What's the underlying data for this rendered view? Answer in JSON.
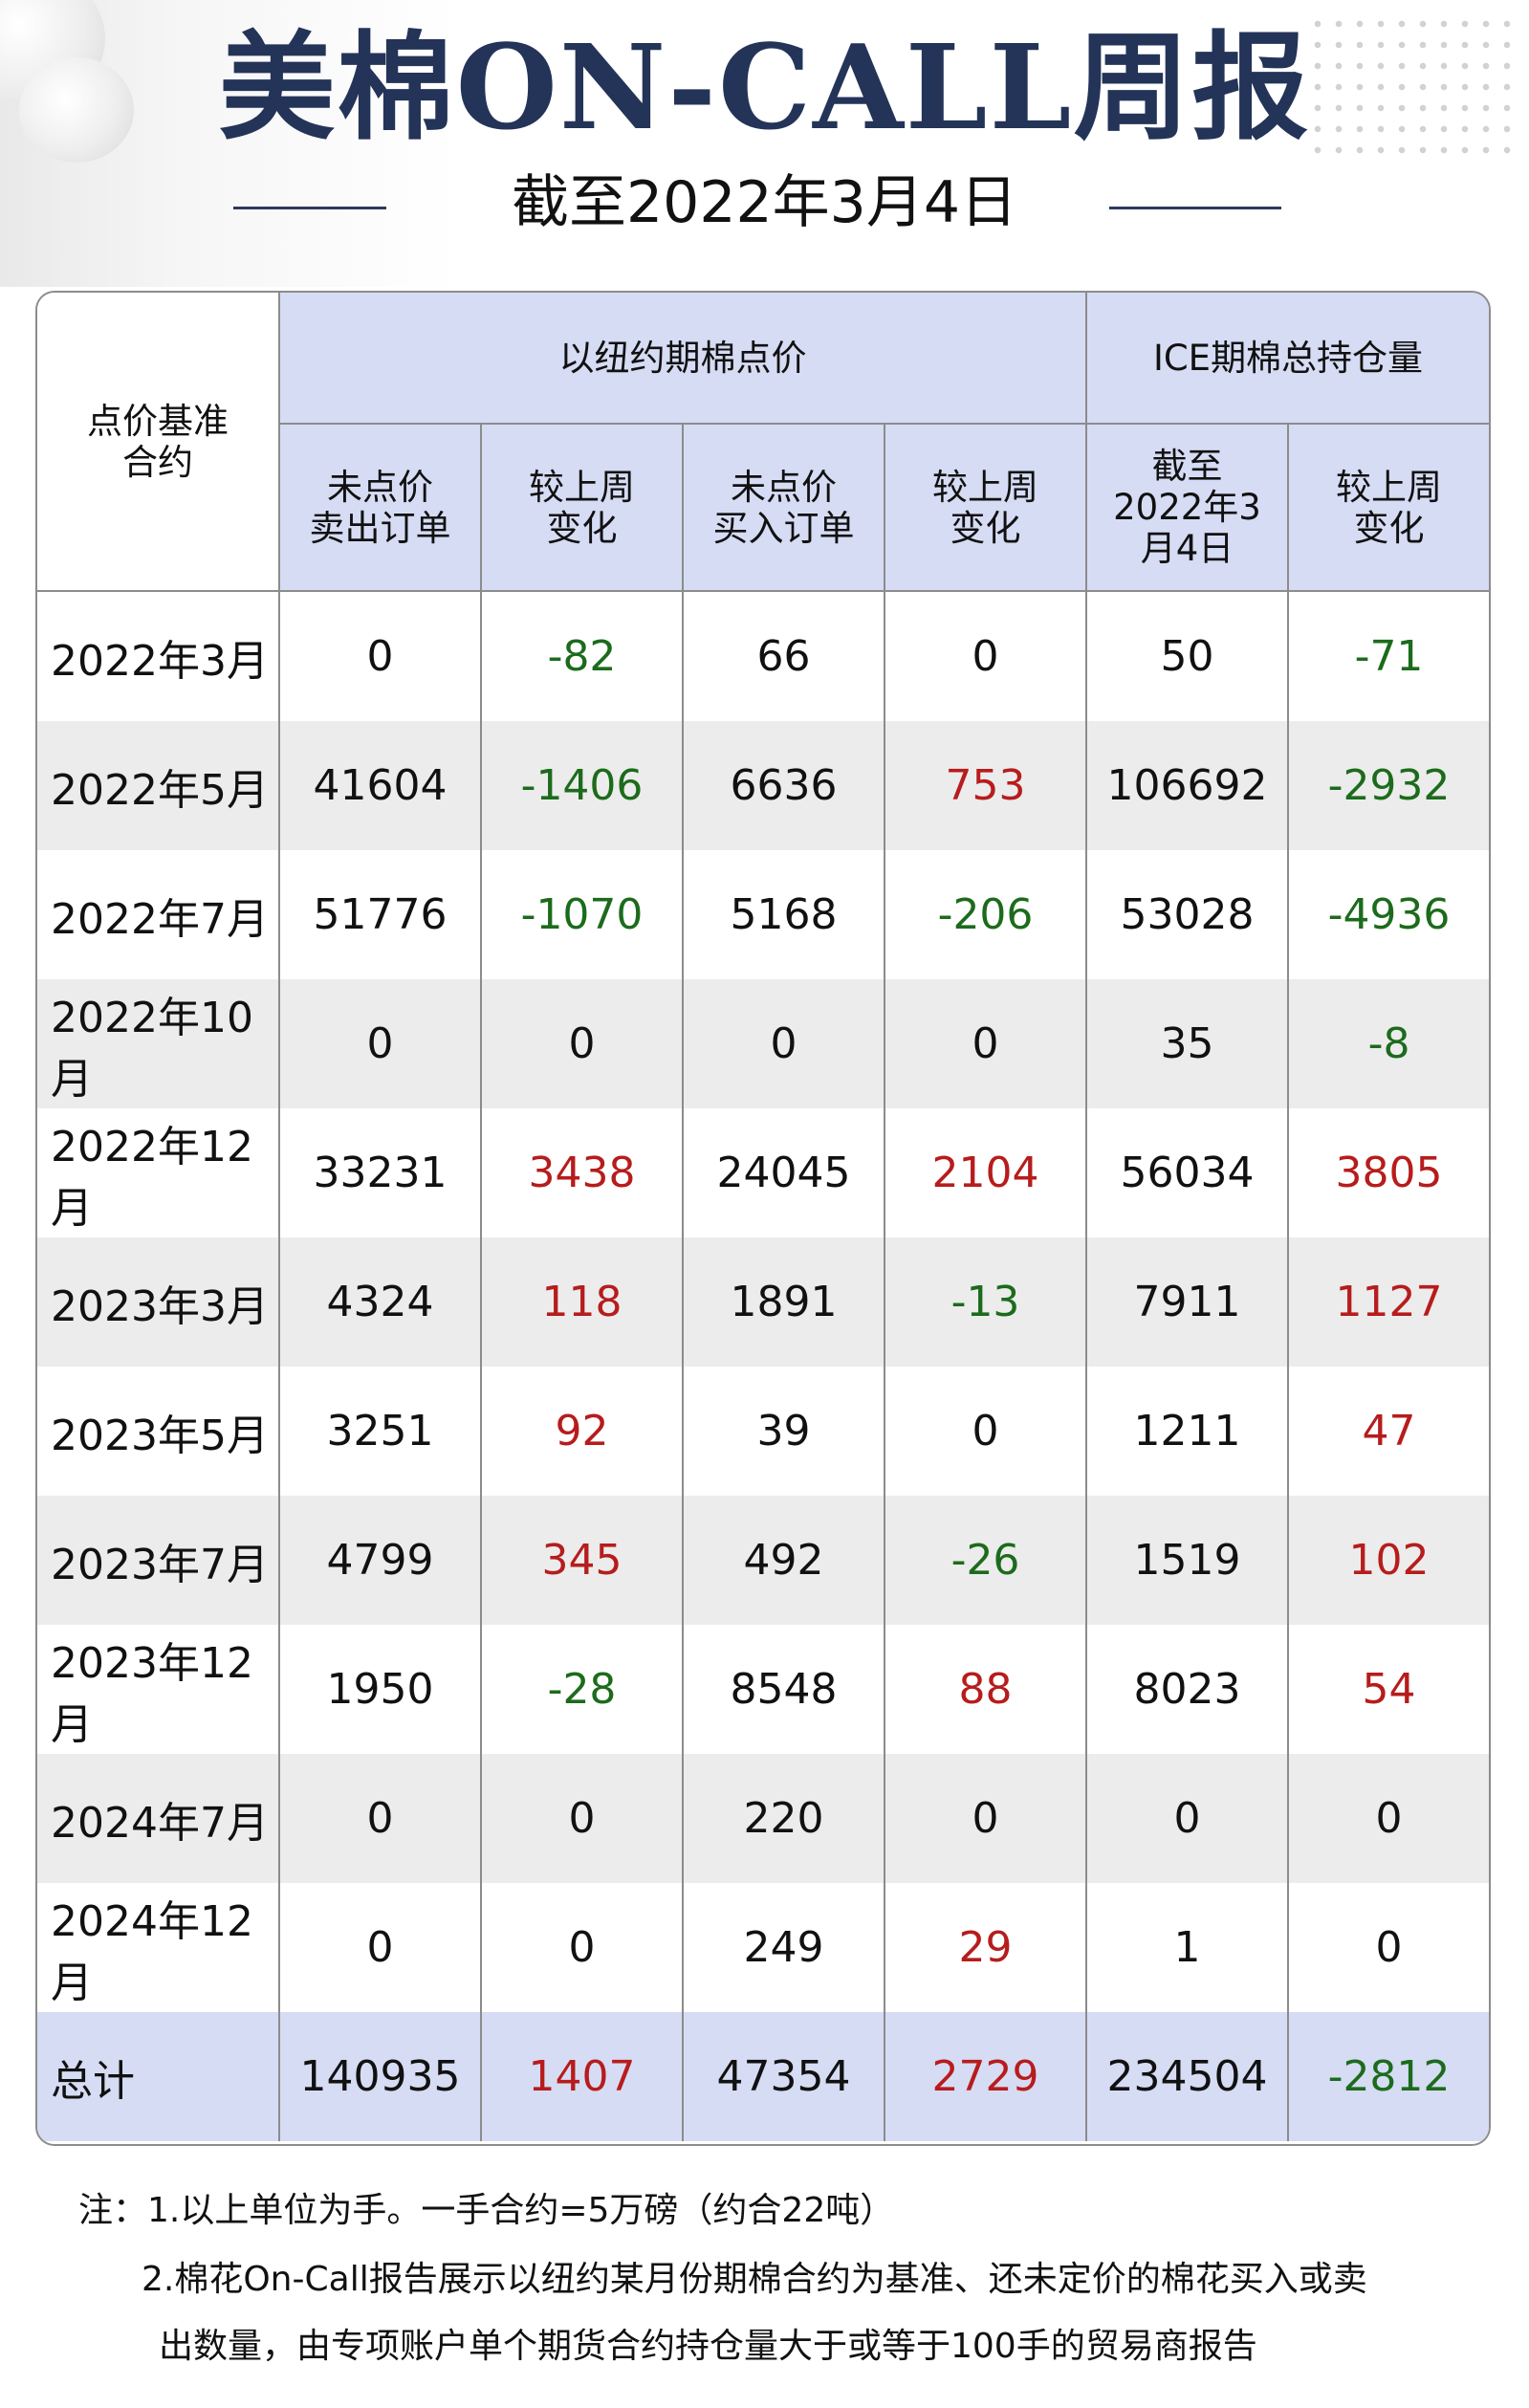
{
  "header": {
    "title": "美棉ON-CALL周报",
    "subtitle": "截至2022年3月4日"
  },
  "table": {
    "corner_label": "点价基准\n合约",
    "group_headers": [
      "以纽约期棉点价",
      "ICE期棉总持仓量"
    ],
    "sub_headers": [
      "未点价\n卖出订单",
      "较上周\n变化",
      "未点价\n买入订单",
      "较上周\n变化",
      "截至\n2022年3\n月4日",
      "较上周\n变化"
    ],
    "rows": [
      {
        "label": "2022年3月",
        "values": [
          "0",
          "-82",
          "66",
          "0",
          "50",
          "-71"
        ]
      },
      {
        "label": "2022年5月",
        "values": [
          "41604",
          "-1406",
          "6636",
          "753",
          "106692",
          "-2932"
        ]
      },
      {
        "label": "2022年7月",
        "values": [
          "51776",
          "-1070",
          "5168",
          "-206",
          "53028",
          "-4936"
        ]
      },
      {
        "label": "2022年10月",
        "values": [
          "0",
          "0",
          "0",
          "0",
          "35",
          "-8"
        ]
      },
      {
        "label": "2022年12月",
        "values": [
          "33231",
          "3438",
          "24045",
          "2104",
          "56034",
          "3805"
        ]
      },
      {
        "label": "2023年3月",
        "values": [
          "4324",
          "118",
          "1891",
          "-13",
          "7911",
          "1127"
        ]
      },
      {
        "label": "2023年5月",
        "values": [
          "3251",
          "92",
          "39",
          "0",
          "1211",
          "47"
        ]
      },
      {
        "label": "2023年7月",
        "values": [
          "4799",
          "345",
          "492",
          "-26",
          "1519",
          "102"
        ]
      },
      {
        "label": "2023年12月",
        "values": [
          "1950",
          "-28",
          "8548",
          "88",
          "8023",
          "54"
        ]
      },
      {
        "label": "2024年7月",
        "values": [
          "0",
          "0",
          "220",
          "0",
          "0",
          "0"
        ]
      },
      {
        "label": "2024年12月",
        "values": [
          "0",
          "0",
          "249",
          "29",
          "1",
          "0"
        ]
      }
    ],
    "total": {
      "label": "总计",
      "values": [
        "140935",
        "1407",
        "47354",
        "2729",
        "234504",
        "-2812"
      ]
    }
  },
  "notes": {
    "note1": "注：1.以上单位为手。一手合约=5万磅（约合22吨）",
    "note2_line1": "2.棉花On-Call报告展示以纽约某月份期棉合约为基准、还未定价的棉花买入或卖",
    "note2_line2": "出数量，由专项账户单个期货合约持仓量大于或等于100手的贸易商报告"
  },
  "colors": {
    "title": "#243458",
    "header_fill": "#d6dcf4",
    "alt_row": "#ececec",
    "negative": "#1c6b1c",
    "positive": "#b71c1c"
  }
}
